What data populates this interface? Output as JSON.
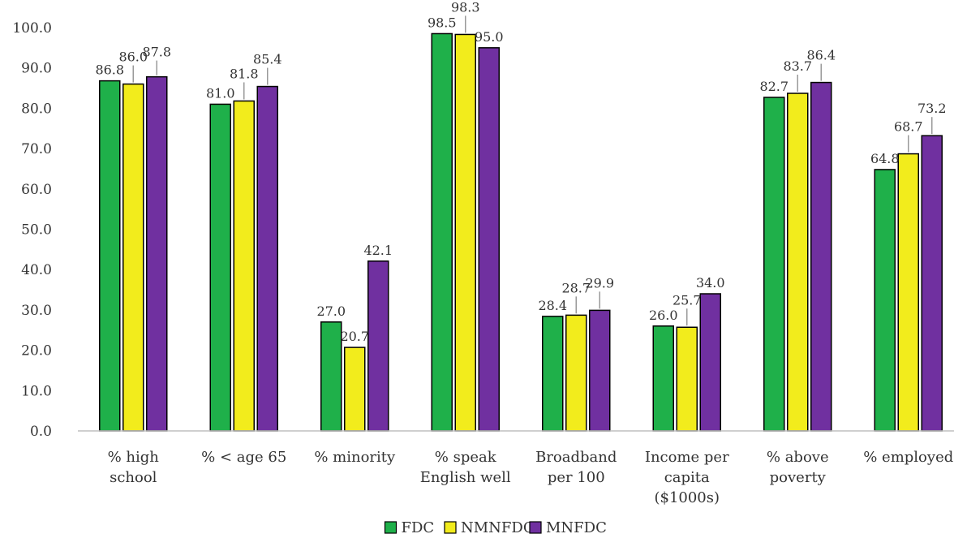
{
  "chart_data": {
    "type": "bar",
    "title": "",
    "xlabel": "",
    "ylabel": "",
    "ylim": [
      0,
      100
    ],
    "yticks": [
      "0.0",
      "10.0",
      "20.0",
      "30.0",
      "40.0",
      "50.0",
      "60.0",
      "70.0",
      "80.0",
      "90.0",
      "100.0"
    ],
    "grid": false,
    "legend": "bottom",
    "categories": [
      [
        "% high",
        "school"
      ],
      [
        "% < age 65"
      ],
      [
        "% minority"
      ],
      [
        "% speak",
        "English well"
      ],
      [
        "Broadband",
        "per 100"
      ],
      [
        "Income per",
        "capita",
        "($1000s)"
      ],
      [
        "% above",
        "poverty"
      ],
      [
        "% employed"
      ]
    ],
    "series": [
      {
        "name": "FDC",
        "color": "#1fb04a",
        "values": [
          86.8,
          81.0,
          27.0,
          98.5,
          28.4,
          26.0,
          82.7,
          64.8
        ]
      },
      {
        "name": "NMNFDC",
        "color": "#f2ec1c",
        "values": [
          86.0,
          81.8,
          20.7,
          98.3,
          28.7,
          25.7,
          83.7,
          68.7
        ]
      },
      {
        "name": "MNFDC",
        "color": "#7030a0",
        "values": [
          87.8,
          85.4,
          42.1,
          95.0,
          29.9,
          34.0,
          86.4,
          73.2
        ]
      }
    ],
    "data_labels": [
      [
        "86.8",
        "81.0",
        "27.0",
        "98.5",
        "28.4",
        "26.0",
        "82.7",
        "64.8"
      ],
      [
        "86.0",
        "81.8",
        "20.7",
        "98.3",
        "28.7",
        "25.7",
        "83.7",
        "68.7"
      ],
      [
        "87.8",
        "85.4",
        "42.1",
        "95.0",
        "29.9",
        "34.0",
        "86.4",
        "73.2"
      ]
    ]
  }
}
